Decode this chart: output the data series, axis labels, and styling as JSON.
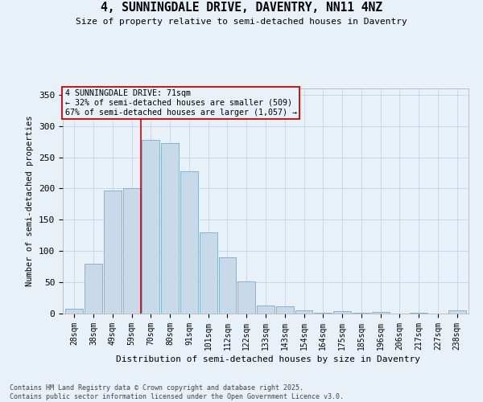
{
  "title": "4, SUNNINGDALE DRIVE, DAVENTRY, NN11 4NZ",
  "subtitle": "Size of property relative to semi-detached houses in Daventry",
  "xlabel": "Distribution of semi-detached houses by size in Daventry",
  "ylabel": "Number of semi-detached properties",
  "categories": [
    "28sqm",
    "38sqm",
    "49sqm",
    "59sqm",
    "70sqm",
    "80sqm",
    "91sqm",
    "101sqm",
    "112sqm",
    "122sqm",
    "133sqm",
    "143sqm",
    "154sqm",
    "164sqm",
    "175sqm",
    "185sqm",
    "196sqm",
    "206sqm",
    "217sqm",
    "227sqm",
    "238sqm"
  ],
  "bar_values": [
    8,
    80,
    197,
    200,
    278,
    273,
    228,
    130,
    90,
    51,
    13,
    11,
    5,
    1,
    4,
    1,
    3,
    0,
    1,
    0,
    5
  ],
  "bar_color": "#c8daea",
  "bar_edge_color": "#7baac8",
  "grid_color": "#c8d8e8",
  "background_color": "#e8f0f8",
  "property_line_index": 4,
  "property_line_color": "#cc0000",
  "annotation_text": "4 SUNNINGDALE DRIVE: 71sqm\n← 32% of semi-detached houses are smaller (509)\n67% of semi-detached houses are larger (1,057) →",
  "annotation_box_color": "#cc0000",
  "ylim": [
    0,
    360
  ],
  "yticks": [
    0,
    50,
    100,
    150,
    200,
    250,
    300,
    350
  ],
  "footnote": "Contains HM Land Registry data © Crown copyright and database right 2025.\nContains public sector information licensed under the Open Government Licence v3.0."
}
